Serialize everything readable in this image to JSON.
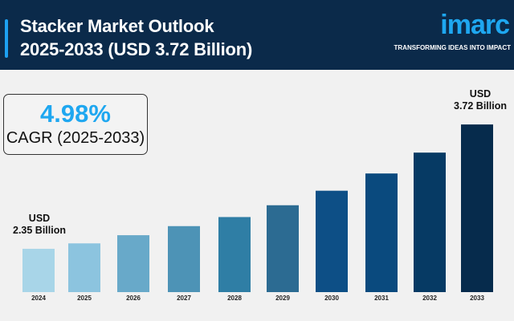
{
  "header": {
    "title_line1": "Stacker Market Outlook",
    "title_line2": "2025-2033 (USD 3.72 Billion)",
    "logo_text": "imarc",
    "logo_tagline": "TRANSFORMING IDEAS INTO IMPACT"
  },
  "cagr": {
    "value": "4.98%",
    "label": "CAGR (2025-2033)"
  },
  "colors": {
    "header_bg": "#0b2a4a",
    "accent": "#1ea7f0",
    "background": "#f1f1f1"
  },
  "chart_data": {
    "type": "bar",
    "categories": [
      "2024",
      "2025",
      "2026",
      "2027",
      "2028",
      "2029",
      "2030",
      "2031",
      "2032",
      "2033"
    ],
    "values": [
      2.35,
      2.41,
      2.5,
      2.6,
      2.7,
      2.83,
      2.99,
      3.18,
      3.41,
      3.72
    ],
    "unit": "USD Billion",
    "bar_colors": [
      "#a8d5e8",
      "#8cc4df",
      "#68a9c9",
      "#4d93b6",
      "#2f7ea5",
      "#2c6b92",
      "#0d4f86",
      "#0a4a7e",
      "#063a64",
      "#062b4c"
    ],
    "annotations": [
      {
        "category": "2024",
        "line1": "USD",
        "line2": "2.35 Billion"
      },
      {
        "category": "2033",
        "line1": "USD",
        "line2": "3.72 Billion"
      }
    ],
    "grid": false,
    "legend": "none"
  }
}
